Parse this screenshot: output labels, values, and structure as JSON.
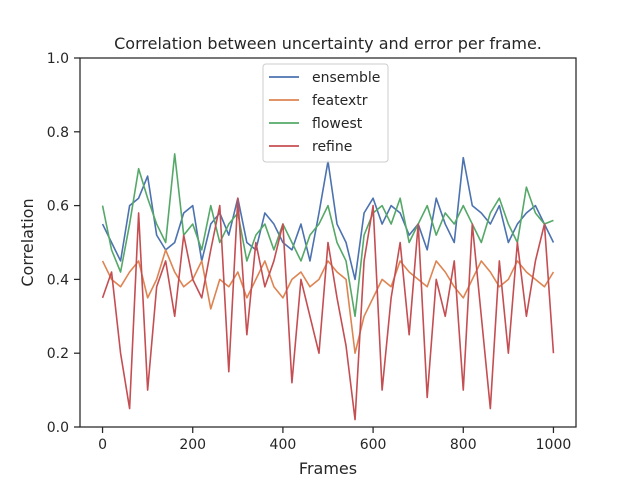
{
  "chart_data": {
    "type": "line",
    "title": "Correlation between uncertainty and error per frame.",
    "xlabel": "Frames",
    "ylabel": "Correlation",
    "xlim": [
      -50,
      1050
    ],
    "ylim": [
      0.0,
      1.0
    ],
    "xticks": [
      0,
      200,
      400,
      600,
      800,
      1000
    ],
    "yticks": [
      0.0,
      0.2,
      0.4,
      0.6,
      0.8,
      1.0
    ],
    "xtick_labels": [
      "0",
      "200",
      "400",
      "600",
      "800",
      "1000"
    ],
    "ytick_labels": [
      "0.0",
      "0.2",
      "0.4",
      "0.6",
      "0.8",
      "1.0"
    ],
    "grid": false,
    "legend_position": "upper center",
    "series": [
      {
        "name": "ensemble",
        "color": "#4c72b0",
        "x": [
          0,
          20,
          40,
          60,
          80,
          100,
          120,
          140,
          160,
          180,
          200,
          220,
          240,
          260,
          280,
          300,
          320,
          340,
          360,
          380,
          400,
          420,
          440,
          460,
          480,
          500,
          520,
          540,
          560,
          580,
          600,
          620,
          640,
          660,
          680,
          700,
          720,
          740,
          760,
          780,
          800,
          820,
          840,
          860,
          880,
          900,
          920,
          940,
          960,
          980,
          1000
        ],
        "y": [
          0.55,
          0.5,
          0.45,
          0.6,
          0.62,
          0.68,
          0.52,
          0.48,
          0.5,
          0.58,
          0.6,
          0.45,
          0.55,
          0.58,
          0.52,
          0.62,
          0.5,
          0.48,
          0.58,
          0.55,
          0.5,
          0.48,
          0.55,
          0.45,
          0.58,
          0.72,
          0.55,
          0.5,
          0.4,
          0.58,
          0.62,
          0.55,
          0.6,
          0.58,
          0.52,
          0.55,
          0.48,
          0.62,
          0.55,
          0.5,
          0.73,
          0.6,
          0.58,
          0.55,
          0.6,
          0.5,
          0.55,
          0.58,
          0.6,
          0.55,
          0.5
        ]
      },
      {
        "name": "featextr",
        "color": "#dd8452",
        "x": [
          0,
          20,
          40,
          60,
          80,
          100,
          120,
          140,
          160,
          180,
          200,
          220,
          240,
          260,
          280,
          300,
          320,
          340,
          360,
          380,
          400,
          420,
          440,
          460,
          480,
          500,
          520,
          540,
          560,
          580,
          600,
          620,
          640,
          660,
          680,
          700,
          720,
          740,
          760,
          780,
          800,
          820,
          840,
          860,
          880,
          900,
          920,
          940,
          960,
          980,
          1000
        ],
        "y": [
          0.45,
          0.4,
          0.38,
          0.42,
          0.45,
          0.35,
          0.4,
          0.48,
          0.42,
          0.38,
          0.4,
          0.45,
          0.32,
          0.4,
          0.38,
          0.42,
          0.35,
          0.4,
          0.45,
          0.38,
          0.35,
          0.4,
          0.42,
          0.38,
          0.4,
          0.45,
          0.42,
          0.4,
          0.2,
          0.3,
          0.35,
          0.4,
          0.38,
          0.45,
          0.42,
          0.4,
          0.38,
          0.45,
          0.42,
          0.38,
          0.35,
          0.4,
          0.45,
          0.42,
          0.38,
          0.4,
          0.45,
          0.42,
          0.4,
          0.38,
          0.42
        ]
      },
      {
        "name": "flowest",
        "color": "#55a868",
        "x": [
          0,
          20,
          40,
          60,
          80,
          100,
          120,
          140,
          160,
          180,
          200,
          220,
          240,
          260,
          280,
          300,
          320,
          340,
          360,
          380,
          400,
          420,
          440,
          460,
          480,
          500,
          520,
          540,
          560,
          580,
          600,
          620,
          640,
          660,
          680,
          700,
          720,
          740,
          760,
          780,
          800,
          820,
          840,
          860,
          880,
          900,
          920,
          940,
          960,
          980,
          1000
        ],
        "y": [
          0.6,
          0.48,
          0.42,
          0.55,
          0.7,
          0.62,
          0.55,
          0.5,
          0.74,
          0.52,
          0.55,
          0.48,
          0.6,
          0.5,
          0.55,
          0.58,
          0.45,
          0.52,
          0.55,
          0.48,
          0.55,
          0.5,
          0.45,
          0.52,
          0.55,
          0.6,
          0.5,
          0.45,
          0.3,
          0.52,
          0.58,
          0.6,
          0.55,
          0.62,
          0.5,
          0.55,
          0.6,
          0.52,
          0.58,
          0.55,
          0.6,
          0.55,
          0.5,
          0.58,
          0.62,
          0.55,
          0.5,
          0.65,
          0.58,
          0.55,
          0.56
        ]
      },
      {
        "name": "refine",
        "color": "#c44e52",
        "x": [
          0,
          20,
          40,
          60,
          80,
          100,
          120,
          140,
          160,
          180,
          200,
          220,
          240,
          260,
          280,
          300,
          320,
          340,
          360,
          380,
          400,
          420,
          440,
          460,
          480,
          500,
          520,
          540,
          560,
          580,
          600,
          620,
          640,
          660,
          680,
          700,
          720,
          740,
          760,
          780,
          800,
          820,
          840,
          860,
          880,
          900,
          920,
          940,
          960,
          980,
          1000
        ],
        "y": [
          0.35,
          0.42,
          0.2,
          0.05,
          0.58,
          0.1,
          0.38,
          0.45,
          0.3,
          0.52,
          0.4,
          0.35,
          0.48,
          0.6,
          0.15,
          0.62,
          0.25,
          0.5,
          0.38,
          0.45,
          0.55,
          0.12,
          0.4,
          0.3,
          0.2,
          0.5,
          0.35,
          0.22,
          0.02,
          0.45,
          0.6,
          0.1,
          0.35,
          0.5,
          0.25,
          0.55,
          0.08,
          0.4,
          0.3,
          0.45,
          0.1,
          0.55,
          0.3,
          0.05,
          0.45,
          0.2,
          0.5,
          0.3,
          0.45,
          0.55,
          0.2
        ]
      }
    ]
  }
}
